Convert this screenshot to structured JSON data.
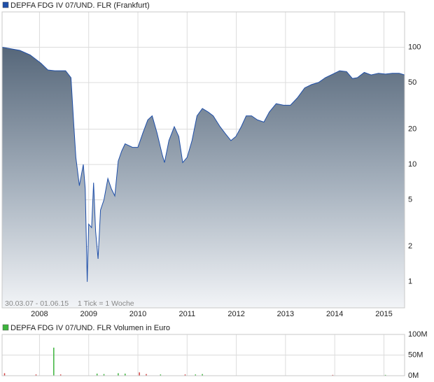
{
  "chart_data": [
    {
      "type": "area",
      "log_scale": true,
      "grid": true,
      "x": [
        2007.24,
        2007.6,
        2007.81,
        2008.03,
        2008.17,
        2008.31,
        2008.53,
        2008.64,
        2008.7,
        2008.74,
        2008.81,
        2008.89,
        2008.93,
        2008.97,
        2009.0,
        2009.06,
        2009.1,
        2009.14,
        2009.19,
        2009.24,
        2009.31,
        2009.39,
        2009.46,
        2009.53,
        2009.6,
        2009.67,
        2009.74,
        2009.89,
        2010.0,
        2010.1,
        2010.2,
        2010.29,
        2010.39,
        2010.49,
        2010.54,
        2010.63,
        2010.74,
        2010.83,
        2010.91,
        2011.0,
        2011.1,
        2011.2,
        2011.31,
        2011.43,
        2011.53,
        2011.67,
        2011.77,
        2011.89,
        2011.99,
        2012.1,
        2012.2,
        2012.31,
        2012.43,
        2012.56,
        2012.67,
        2012.81,
        2012.96,
        2013.1,
        2013.24,
        2013.39,
        2013.53,
        2013.67,
        2013.81,
        2013.96,
        2014.1,
        2014.24,
        2014.36,
        2014.46,
        2014.6,
        2014.74,
        2014.89,
        2015.03,
        2015.17,
        2015.31,
        2015.42
      ],
      "series": [
        {
          "name": "DEPFA FDG IV 07/UND. FLR (Frankfurt)",
          "color": "#1f4fa8",
          "values": [
            100,
            94,
            86,
            73,
            64,
            63,
            63,
            55,
            21,
            11.5,
            6.6,
            10,
            6.2,
            1,
            3.1,
            2.9,
            7,
            2.7,
            1.57,
            4.1,
            5,
            7.6,
            6.2,
            5.4,
            10.7,
            13,
            15,
            14,
            14,
            18.5,
            24,
            26,
            18.5,
            12.3,
            10.4,
            16,
            21,
            17.3,
            10.4,
            11.5,
            16,
            26,
            30,
            28,
            26,
            21,
            18.5,
            16,
            17.3,
            21,
            26,
            26,
            24,
            23,
            28,
            33,
            32,
            32,
            37,
            45,
            48,
            50,
            55,
            59,
            63,
            62,
            54,
            55,
            61,
            58,
            60,
            59,
            60,
            60,
            58
          ]
        }
      ],
      "xlim": [
        2007.24,
        2015.42
      ],
      "xticks": [
        2008,
        2009,
        2010,
        2011,
        2012,
        2013,
        2014,
        2015
      ],
      "ylim": [
        0.6,
        200
      ],
      "yticks": [
        1,
        2,
        5,
        10,
        20,
        50,
        100
      ],
      "annotations": [
        "30.03.07 - 01.06.15",
        "1 Tick = 1 Woche"
      ]
    },
    {
      "type": "bar",
      "grid": true,
      "x": [
        2007.29,
        2007.93,
        2008.29,
        2008.43,
        2009.17,
        2009.31,
        2009.6,
        2009.74,
        2010.03,
        2010.17,
        2010.46,
        2010.96,
        2011.17,
        2011.31,
        2013.96,
        2015.03
      ],
      "series": [
        {
          "name": "DEPFA FDG IV 07/UND. FLR Volumen in Euro",
          "color": "#3cb43c",
          "values": [
            6000000,
            3000000,
            68000000,
            3000000,
            5000000,
            4000000,
            6000000,
            5000000,
            8000000,
            4000000,
            3000000,
            3000000,
            3000000,
            4000000,
            2000000,
            2000000
          ],
          "colors": [
            "#d23c3c",
            "#d23c3c",
            "#3cb43c",
            "#d23c3c",
            "#3cb43c",
            "#3cb43c",
            "#3cb43c",
            "#3cb43c",
            "#d23c3c",
            "#d23c3c",
            "#3cb43c",
            "#d23c3c",
            "#3cb43c",
            "#3cb43c",
            "#d23c3c",
            "#3cb43c"
          ]
        }
      ],
      "xlim": [
        2007.24,
        2015.42
      ],
      "ylim": [
        0,
        100000000
      ],
      "yticks": [
        {
          "value": 0,
          "label": "0M"
        },
        {
          "value": 50000000,
          "label": "50M"
        },
        {
          "value": 100000000,
          "label": "100M"
        }
      ]
    }
  ]
}
